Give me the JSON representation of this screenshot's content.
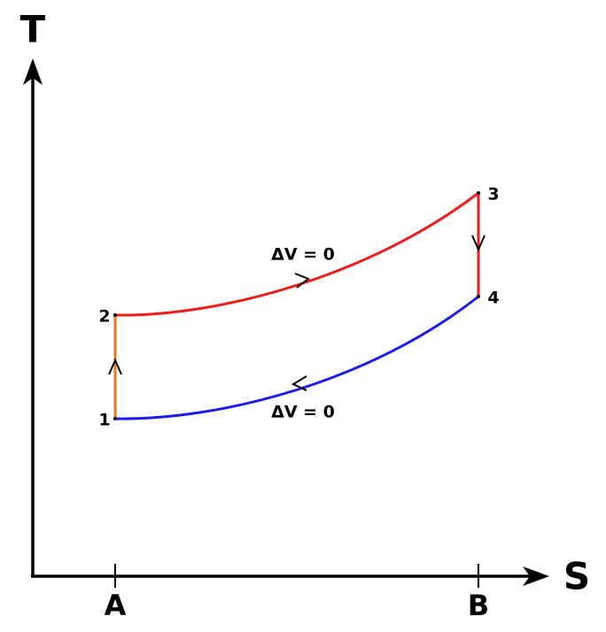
{
  "axes": {
    "y_label": "T",
    "x_label": "S",
    "x_ticks": [
      "A",
      "B"
    ]
  },
  "points": [
    {
      "label": "1"
    },
    {
      "label": "2"
    },
    {
      "label": "3"
    },
    {
      "label": "4"
    }
  ],
  "annotations": [
    {
      "text": "ΔV = 0"
    },
    {
      "text": "ΔV = 0"
    }
  ]
}
